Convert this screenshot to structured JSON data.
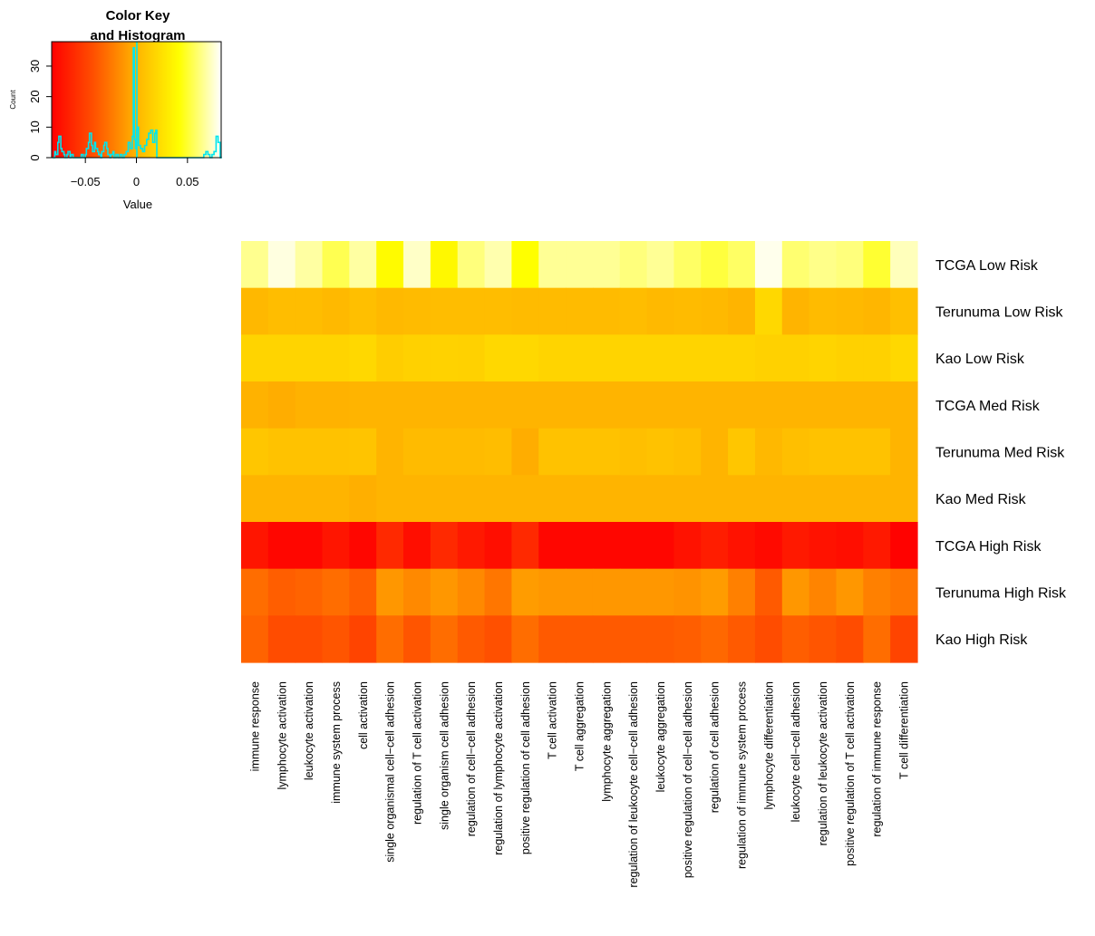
{
  "chart_data": [
    {
      "type": "histogram",
      "title_line1": "Color Key",
      "title_line2": "and Histogram",
      "xlabel": "Value",
      "ylabel": "Count",
      "xlim": [
        -0.083,
        0.083
      ],
      "ylim": [
        0,
        38
      ],
      "x_ticks": [
        {
          "value": -0.05,
          "label": "−0.05"
        },
        {
          "value": 0,
          "label": "0"
        },
        {
          "value": 0.05,
          "label": "0.05"
        }
      ],
      "y_ticks": [
        {
          "value": 0,
          "label": "0"
        },
        {
          "value": 10,
          "label": "10"
        },
        {
          "value": 20,
          "label": "20"
        },
        {
          "value": 30,
          "label": "30"
        }
      ],
      "color_scale": {
        "min": -0.083,
        "max": 0.083,
        "stops": [
          {
            "value": -0.083,
            "color": "#ff0000"
          },
          {
            "value": -0.042,
            "color": "#ff5000"
          },
          {
            "value": 0.0,
            "color": "#ffb400"
          },
          {
            "value": 0.042,
            "color": "#ffff00"
          },
          {
            "value": 0.083,
            "color": "#ffffff"
          }
        ]
      },
      "histogram_color": "#00e5ee",
      "histogram_step": {
        "x": [
          -0.082,
          -0.08,
          -0.079,
          -0.077,
          -0.076,
          -0.074,
          -0.073,
          -0.071,
          -0.07,
          -0.068,
          -0.067,
          -0.065,
          -0.064,
          -0.062,
          -0.06,
          -0.058,
          -0.056,
          -0.054,
          -0.052,
          -0.05,
          -0.049,
          -0.047,
          -0.046,
          -0.044,
          -0.043,
          -0.041,
          -0.04,
          -0.038,
          -0.037,
          -0.035,
          -0.034,
          -0.032,
          -0.031,
          -0.029,
          -0.028,
          -0.026,
          -0.025,
          -0.023,
          -0.022,
          -0.02,
          -0.018,
          -0.016,
          -0.014,
          -0.012,
          -0.01,
          -0.008,
          -0.006,
          -0.004,
          -0.003,
          -0.002,
          -0.001,
          0.0,
          0.001,
          0.002,
          0.004,
          0.006,
          0.008,
          0.01,
          0.012,
          0.014,
          0.016,
          0.018,
          0.019,
          0.02,
          0.022,
          0.03,
          0.04,
          0.05,
          0.06,
          0.066,
          0.068,
          0.07,
          0.072,
          0.074,
          0.076,
          0.078,
          0.08,
          0.082
        ],
        "y": [
          0,
          2,
          1,
          5,
          7,
          3,
          2,
          1,
          0,
          1,
          2,
          0,
          1,
          0,
          0,
          0,
          0,
          1,
          0,
          1,
          3,
          5,
          8,
          4,
          2,
          5,
          3,
          2,
          1,
          0,
          2,
          4,
          5,
          3,
          1,
          0,
          1,
          2,
          0,
          1,
          0,
          1,
          0,
          1,
          2,
          5,
          3,
          7,
          36,
          6,
          3,
          9,
          10,
          4,
          3,
          2,
          4,
          6,
          8,
          9,
          5,
          8,
          9,
          0,
          0,
          0,
          0,
          0,
          0,
          1,
          2,
          1,
          0,
          1,
          2,
          7,
          5,
          0
        ]
      }
    },
    {
      "type": "heatmap",
      "columns": [
        "immune response",
        "lymphocyte activation",
        "leukocyte activation",
        "immune system process",
        "cell activation",
        "single organismal cell−cell adhesion",
        "regulation of T cell activation",
        "single organism cell adhesion",
        "regulation of cell−cell adhesion",
        "regulation of lymphocyte activation",
        "positive regulation of cell adhesion",
        "T cell activation",
        "T cell aggregation",
        "lymphocyte aggregation",
        "regulation of leukocyte cell−cell adhesion",
        "leukocyte aggregation",
        "positive regulation of cell−cell adhesion",
        "regulation of cell adhesion",
        "regulation of immune system process",
        "lymphocyte differentiation",
        "leukocyte cell−cell adhesion",
        "regulation of leukocyte activation",
        "positive regulation of T cell activation",
        "regulation of immune response",
        "T cell differentiation"
      ],
      "rows": [
        "TCGA Low Risk",
        "Terunuma Low Risk",
        "Kao Low Risk",
        "TCGA Med Risk",
        "Terunuma Med Risk",
        "Kao Med Risk",
        "TCGA High Risk",
        "Terunuma High Risk",
        "Kao High Risk"
      ],
      "values": [
        [
          0.065,
          0.078,
          0.068,
          0.055,
          0.068,
          0.04,
          0.074,
          0.038,
          0.062,
          0.07,
          0.042,
          0.066,
          0.066,
          0.066,
          0.062,
          0.066,
          0.058,
          0.052,
          0.058,
          0.08,
          0.06,
          0.064,
          0.062,
          0.05,
          0.072
        ],
        [
          0.002,
          0.005,
          0.005,
          0.003,
          0.006,
          0.003,
          0.004,
          0.005,
          0.005,
          0.005,
          0.004,
          0.004,
          0.004,
          0.004,
          0.005,
          0.003,
          0.004,
          0.003,
          0.0,
          0.02,
          0.0,
          0.004,
          0.003,
          0.001,
          0.006
        ],
        [
          0.018,
          0.018,
          0.018,
          0.018,
          0.02,
          0.014,
          0.016,
          0.017,
          0.016,
          0.02,
          0.02,
          0.018,
          0.018,
          0.018,
          0.018,
          0.018,
          0.018,
          0.018,
          0.018,
          0.016,
          0.016,
          0.018,
          0.016,
          0.016,
          0.02
        ],
        [
          -0.001,
          -0.003,
          -0.001,
          -0.001,
          0.0,
          0.0,
          0.0,
          0.0,
          0.0,
          0.0,
          0.0,
          0.0,
          0.0,
          0.0,
          0.0,
          0.0,
          0.0,
          0.0,
          0.0,
          0.0,
          0.0,
          0.0,
          0.0,
          0.0,
          0.0
        ],
        [
          0.01,
          0.008,
          0.008,
          0.008,
          0.009,
          0.0,
          0.004,
          0.004,
          0.004,
          0.005,
          -0.003,
          0.008,
          0.008,
          0.008,
          0.006,
          0.008,
          0.006,
          0.0,
          0.01,
          0.002,
          0.006,
          0.008,
          0.008,
          0.008,
          0.0
        ],
        [
          0.0,
          0.0,
          0.0,
          0.0,
          -0.002,
          0.0,
          0.0,
          0.0,
          0.0,
          0.0,
          0.0,
          0.0,
          0.0,
          0.0,
          0.0,
          0.0,
          0.0,
          0.0,
          0.0,
          0.0,
          0.0,
          0.0,
          0.0,
          0.0,
          0.0
        ],
        [
          -0.072,
          -0.08,
          -0.08,
          -0.072,
          -0.08,
          -0.062,
          -0.076,
          -0.062,
          -0.07,
          -0.076,
          -0.062,
          -0.08,
          -0.08,
          -0.08,
          -0.08,
          -0.08,
          -0.074,
          -0.068,
          -0.074,
          -0.078,
          -0.07,
          -0.074,
          -0.076,
          -0.07,
          -0.082
        ],
        [
          -0.03,
          -0.036,
          -0.034,
          -0.03,
          -0.036,
          -0.012,
          -0.018,
          -0.012,
          -0.018,
          -0.026,
          -0.01,
          -0.012,
          -0.012,
          -0.012,
          -0.012,
          -0.012,
          -0.014,
          -0.01,
          -0.022,
          -0.038,
          -0.012,
          -0.02,
          -0.012,
          -0.022,
          -0.026
        ],
        [
          -0.034,
          -0.044,
          -0.044,
          -0.04,
          -0.048,
          -0.03,
          -0.04,
          -0.03,
          -0.038,
          -0.042,
          -0.03,
          -0.038,
          -0.038,
          -0.038,
          -0.038,
          -0.038,
          -0.036,
          -0.032,
          -0.038,
          -0.044,
          -0.036,
          -0.04,
          -0.044,
          -0.03,
          -0.048
        ]
      ]
    }
  ]
}
